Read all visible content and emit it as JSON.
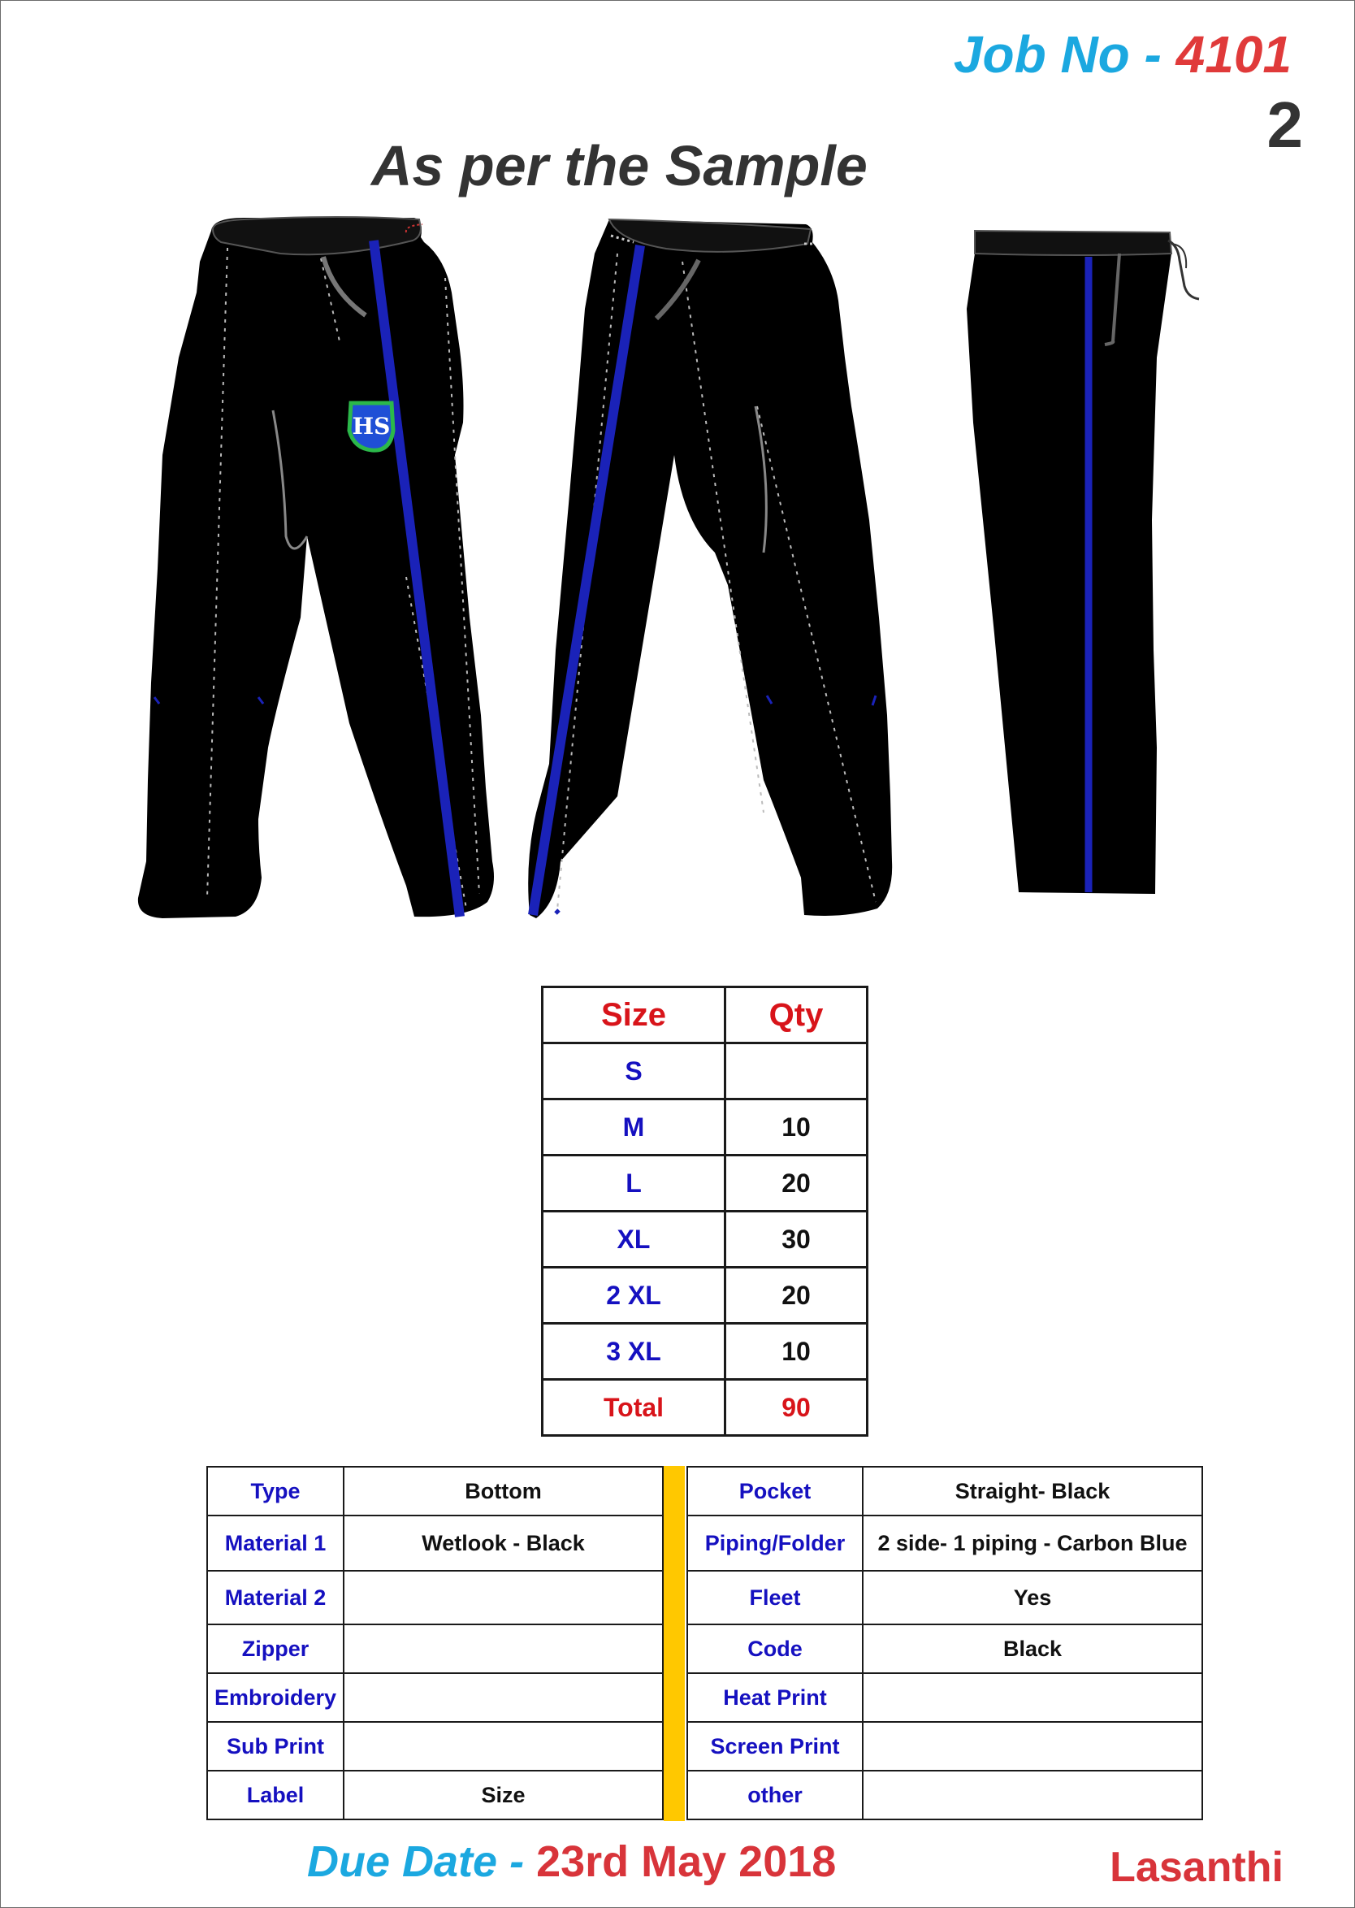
{
  "header": {
    "job_label": "Job No - ",
    "job_number": "4101",
    "sheet_number": "2",
    "title": "As per the Sample"
  },
  "garment_views": {
    "icons": [
      "pants-front-icon",
      "pants-back-icon",
      "pants-side-icon",
      "school-crest-icon"
    ],
    "crest_text": "HS",
    "colors": {
      "body": "#000000",
      "piping": "#1a22b8",
      "crest_blue": "#1f4fd6",
      "crest_green": "#2bb84a"
    }
  },
  "size_table": {
    "size_header": "Size",
    "qty_header": "Qty",
    "rows": [
      {
        "size": "S",
        "qty": ""
      },
      {
        "size": "M",
        "qty": "10"
      },
      {
        "size": "L",
        "qty": "20"
      },
      {
        "size": "XL",
        "qty": "30"
      },
      {
        "size": "2 XL",
        "qty": "20"
      },
      {
        "size": "3 XL",
        "qty": "10"
      }
    ],
    "total_label": "Total",
    "total_qty": "90"
  },
  "spec_left": [
    {
      "key": "Type",
      "value": "Bottom"
    },
    {
      "key": "Material 1",
      "value": "Wetlook - Black"
    },
    {
      "key": "Material 2",
      "value": ""
    },
    {
      "key": "Zipper",
      "value": ""
    },
    {
      "key": "Embroidery",
      "value": ""
    },
    {
      "key": "Sub Print",
      "value": ""
    },
    {
      "key": "Label",
      "value": "Size"
    }
  ],
  "spec_right": [
    {
      "key": "Pocket",
      "value": "Straight- Black"
    },
    {
      "key": "Piping/Folder",
      "value": "2 side-  1 piping - Carbon Blue"
    },
    {
      "key": "Fleet",
      "value": "Yes"
    },
    {
      "key": "Code",
      "value": "Black"
    },
    {
      "key": "Heat Print",
      "value": ""
    },
    {
      "key": "Screen Print",
      "value": ""
    },
    {
      "key": "other",
      "value": ""
    }
  ],
  "footer": {
    "due_label": "Due Date - ",
    "due_date": "23rd May 2018",
    "author": "Lasanthi"
  },
  "colors": {
    "accent_blue": "#1ba8e0",
    "accent_red": "#d8141a",
    "label_blue": "#1510c0",
    "divider_yellow": "#ffc800"
  }
}
